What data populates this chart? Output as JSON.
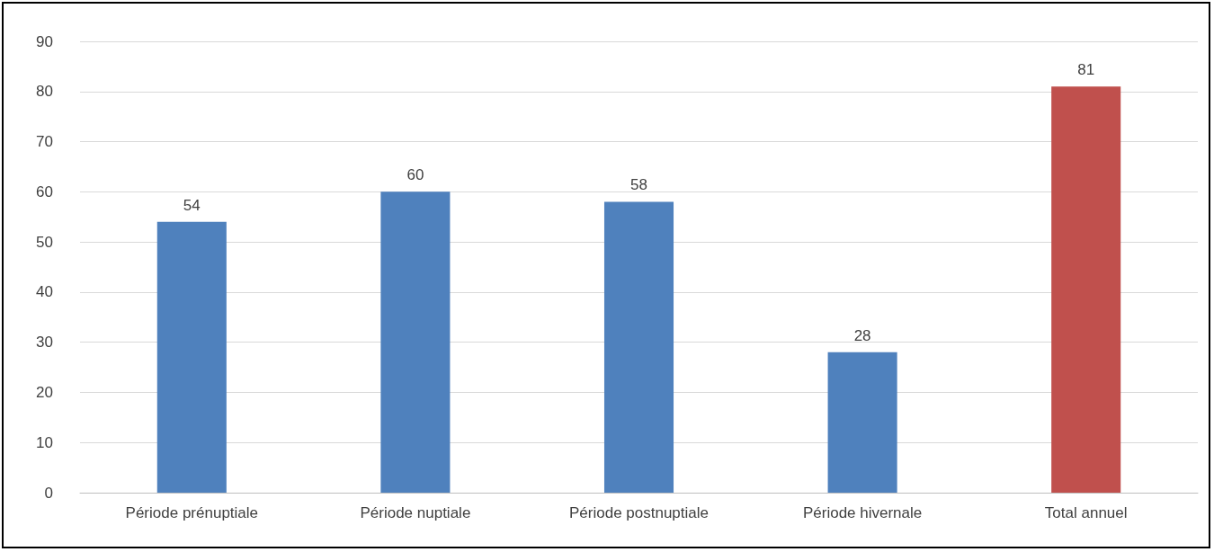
{
  "chart_data": {
    "type": "bar",
    "categories": [
      "Période prénuptiale",
      "Période nuptiale",
      "Période postnuptiale",
      "Période hivernale",
      "Total annuel"
    ],
    "values": [
      54,
      60,
      58,
      28,
      81
    ],
    "colors": [
      "#4f81bd",
      "#4f81bd",
      "#4f81bd",
      "#4f81bd",
      "#c0504d"
    ],
    "ylim": [
      0,
      90
    ],
    "yticks": [
      0,
      10,
      20,
      30,
      40,
      50,
      60,
      70,
      80,
      90
    ],
    "grid": "y",
    "data_labels": true
  }
}
